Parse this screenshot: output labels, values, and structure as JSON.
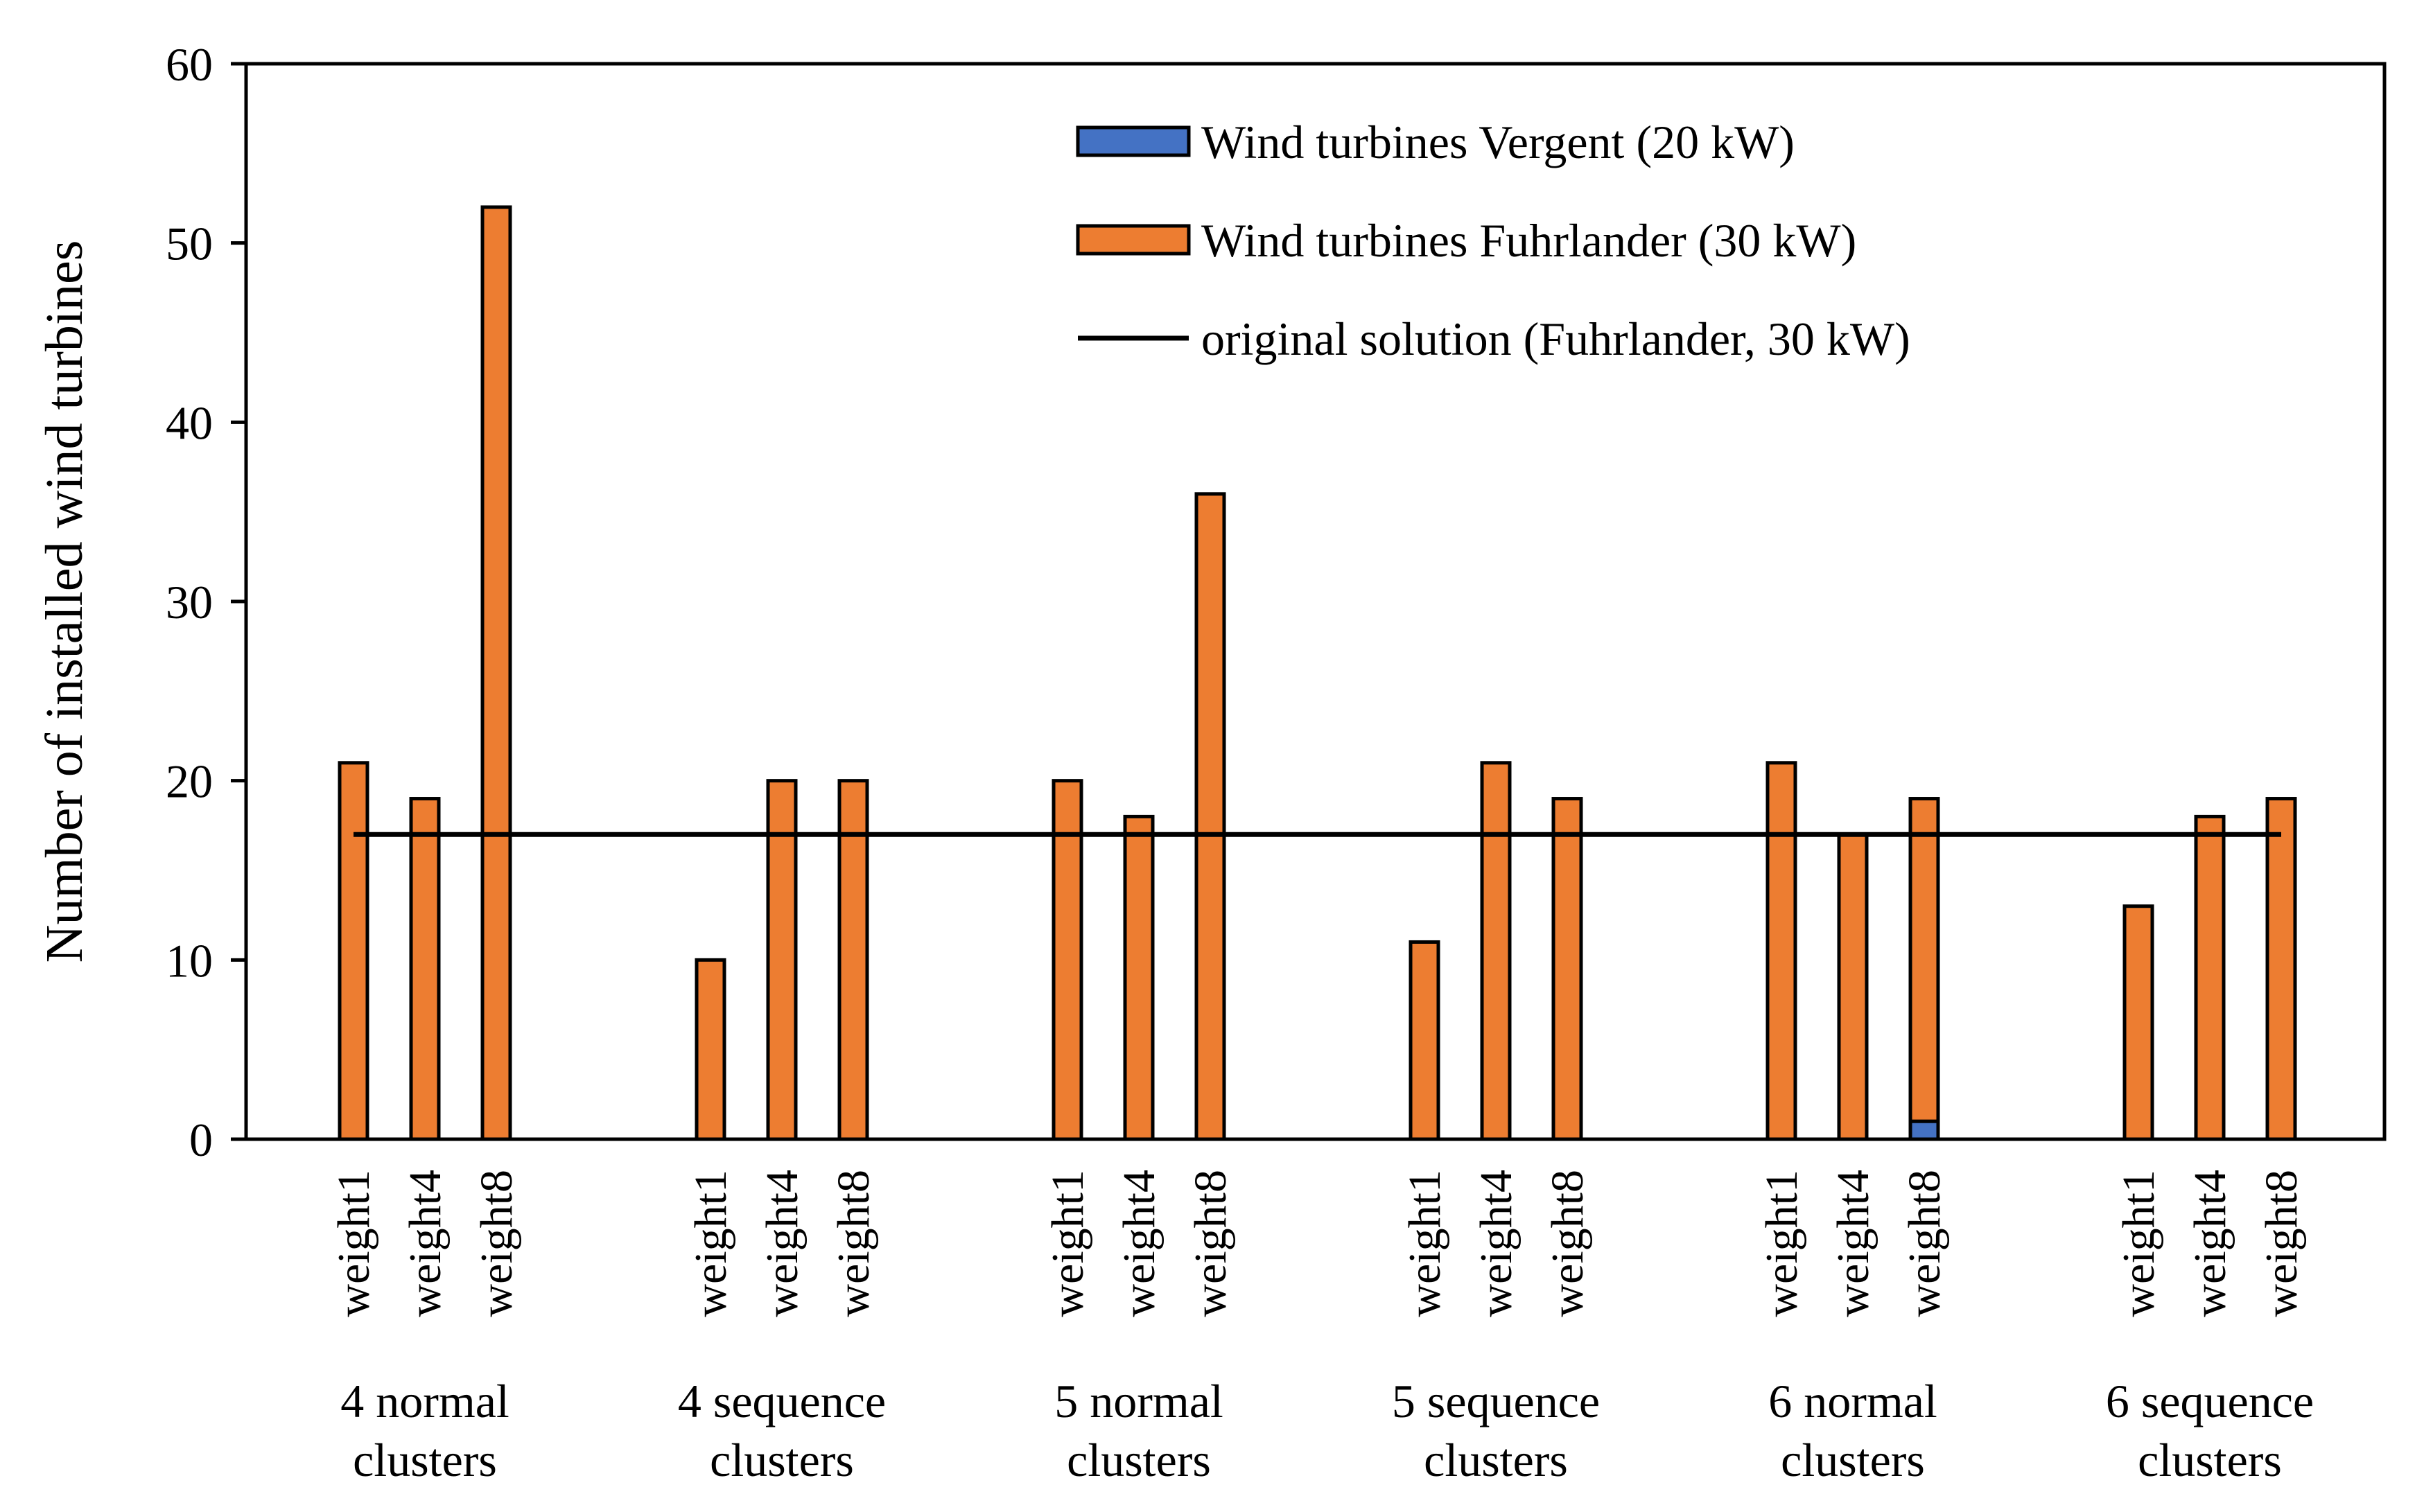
{
  "chart_data": {
    "type": "bar",
    "stacked": true,
    "ylabel": "Number of installed wind turbines",
    "ylim": [
      0,
      60
    ],
    "yticks": [
      "0",
      "10",
      "20",
      "30",
      "40",
      "50",
      "60"
    ],
    "grid": false,
    "legend_position": "top-right",
    "groups": [
      {
        "label_line1": "4 normal",
        "label_line2": "clusters",
        "categories": [
          "weight1",
          "weight4",
          "weight8"
        ]
      },
      {
        "label_line1": "4 sequence",
        "label_line2": "clusters",
        "categories": [
          "weight1",
          "weight4",
          "weight8"
        ]
      },
      {
        "label_line1": "5 normal",
        "label_line2": "clusters",
        "categories": [
          "weight1",
          "weight4",
          "weight8"
        ]
      },
      {
        "label_line1": "5 sequence",
        "label_line2": "clusters",
        "categories": [
          "weight1",
          "weight4",
          "weight8"
        ]
      },
      {
        "label_line1": "6 normal",
        "label_line2": "clusters",
        "categories": [
          "weight1",
          "weight4",
          "weight8"
        ]
      },
      {
        "label_line1": "6 sequence",
        "label_line2": "clusters",
        "categories": [
          "weight1",
          "weight4",
          "weight8"
        ]
      }
    ],
    "series": [
      {
        "name": "Wind turbines Vergent (20 kW)",
        "color": "#4472C4",
        "values": [
          0,
          0,
          0,
          0,
          0,
          0,
          0,
          0,
          0,
          0,
          0,
          0,
          0,
          0,
          1,
          0,
          0,
          0
        ]
      },
      {
        "name": "Wind turbines Fuhrlander (30 kW)",
        "color": "#ED7D31",
        "values": [
          21,
          19,
          52,
          10,
          20,
          20,
          20,
          18,
          36,
          11,
          21,
          19,
          21,
          17,
          18,
          13,
          18,
          19
        ]
      }
    ],
    "reference_line": {
      "name": "original solution (Fuhrlander, 30 kW)",
      "value": 17,
      "color": "#000000"
    }
  }
}
